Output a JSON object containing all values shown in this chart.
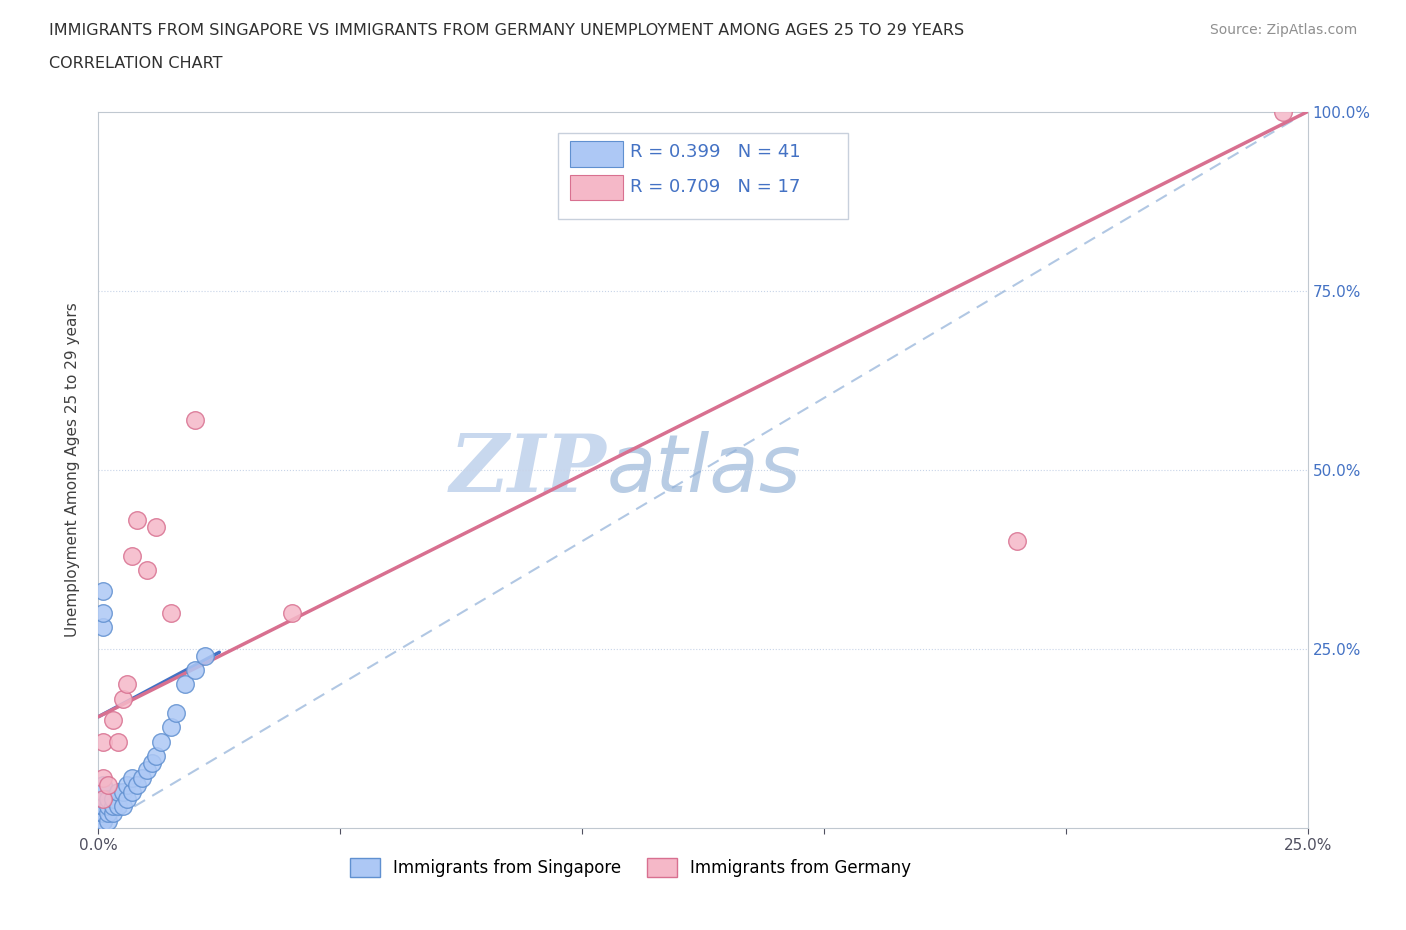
{
  "title_line1": "IMMIGRANTS FROM SINGAPORE VS IMMIGRANTS FROM GERMANY UNEMPLOYMENT AMONG AGES 25 TO 29 YEARS",
  "title_line2": "CORRELATION CHART",
  "source_text": "Source: ZipAtlas.com",
  "ylabel": "Unemployment Among Ages 25 to 29 years",
  "xlim": [
    0,
    0.25
  ],
  "ylim": [
    0,
    1.0
  ],
  "xticks": [
    0.0,
    0.05,
    0.1,
    0.15,
    0.2,
    0.25
  ],
  "yticks_right": [
    0.0,
    0.25,
    0.5,
    0.75,
    1.0
  ],
  "ytick_labels_right": [
    "",
    "25.0%",
    "50.0%",
    "75.0%",
    "100.0%"
  ],
  "xtick_labels": [
    "0.0%",
    "",
    "",
    "",
    "",
    "25.0%"
  ],
  "sg_color": "#adc8f5",
  "sg_edge_color": "#6090d0",
  "de_color": "#f5b8c8",
  "de_edge_color": "#d87090",
  "sg_line_color": "#4472c4",
  "de_line_color": "#d87090",
  "dashed_line_color": "#90b0d8",
  "sg_R": 0.399,
  "sg_N": 41,
  "de_R": 0.709,
  "de_N": 17,
  "legend_R_color": "#4472c4",
  "watermark_zip_color": "#c8d8ee",
  "watermark_atlas_color": "#b8cce4",
  "sg_points_x": [
    0.001,
    0.001,
    0.001,
    0.001,
    0.001,
    0.001,
    0.001,
    0.001,
    0.001,
    0.001,
    0.001,
    0.001,
    0.002,
    0.002,
    0.002,
    0.002,
    0.003,
    0.003,
    0.003,
    0.004,
    0.004,
    0.005,
    0.005,
    0.006,
    0.006,
    0.007,
    0.007,
    0.008,
    0.009,
    0.01,
    0.011,
    0.012,
    0.013,
    0.015,
    0.016,
    0.018,
    0.02,
    0.022,
    0.001,
    0.001,
    0.001
  ],
  "sg_points_y": [
    0.01,
    0.01,
    0.01,
    0.02,
    0.02,
    0.02,
    0.03,
    0.03,
    0.03,
    0.04,
    0.05,
    0.06,
    0.01,
    0.02,
    0.03,
    0.04,
    0.02,
    0.03,
    0.04,
    0.03,
    0.05,
    0.03,
    0.05,
    0.04,
    0.06,
    0.05,
    0.07,
    0.06,
    0.07,
    0.08,
    0.09,
    0.1,
    0.12,
    0.14,
    0.16,
    0.2,
    0.22,
    0.24,
    0.33,
    0.28,
    0.3
  ],
  "de_points_x": [
    0.001,
    0.001,
    0.001,
    0.002,
    0.003,
    0.004,
    0.005,
    0.006,
    0.007,
    0.008,
    0.01,
    0.012,
    0.015,
    0.02,
    0.04,
    0.19,
    0.245
  ],
  "de_points_y": [
    0.04,
    0.07,
    0.12,
    0.06,
    0.15,
    0.12,
    0.18,
    0.2,
    0.38,
    0.43,
    0.36,
    0.42,
    0.3,
    0.57,
    0.3,
    0.4,
    1.0
  ],
  "sg_line_x": [
    0.0,
    0.025
  ],
  "sg_line_y": [
    0.155,
    0.245
  ],
  "de_line_x": [
    0.0,
    0.25
  ],
  "de_line_y": [
    0.155,
    1.0
  ],
  "dashed_line_x": [
    0.0,
    0.25
  ],
  "dashed_line_y": [
    0.0,
    1.0
  ],
  "background_color": "#ffffff",
  "grid_color": "#c8d4e8",
  "title_color": "#303030",
  "axis_color": "#c0c8d0"
}
